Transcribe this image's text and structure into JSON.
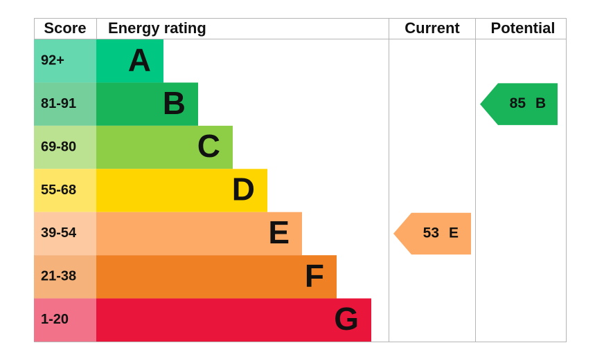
{
  "chart_data": {
    "type": "epc",
    "headers": {
      "score": "Score",
      "rating": "Energy rating",
      "current": "Current",
      "potential": "Potential"
    },
    "bands": [
      {
        "score": "92+",
        "letter": "A",
        "color": "#00c781",
        "score_color": "#66d8b0"
      },
      {
        "score": "81-91",
        "letter": "B",
        "color": "#19b459",
        "score_color": "#75cf9b"
      },
      {
        "score": "69-80",
        "letter": "C",
        "color": "#8dce46",
        "score_color": "#bbe290"
      },
      {
        "score": "55-68",
        "letter": "D",
        "color": "#ffd500",
        "score_color": "#ffe566"
      },
      {
        "score": "39-54",
        "letter": "E",
        "color": "#fcaa65",
        "score_color": "#fdc9a1"
      },
      {
        "score": "21-38",
        "letter": "F",
        "color": "#ef8023",
        "score_color": "#f5b27b"
      },
      {
        "score": "1-20",
        "letter": "G",
        "color": "#e9153b",
        "score_color": "#f27389"
      }
    ],
    "current": {
      "value": 53,
      "rating": "E"
    },
    "potential": {
      "value": 85,
      "rating": "B"
    }
  }
}
